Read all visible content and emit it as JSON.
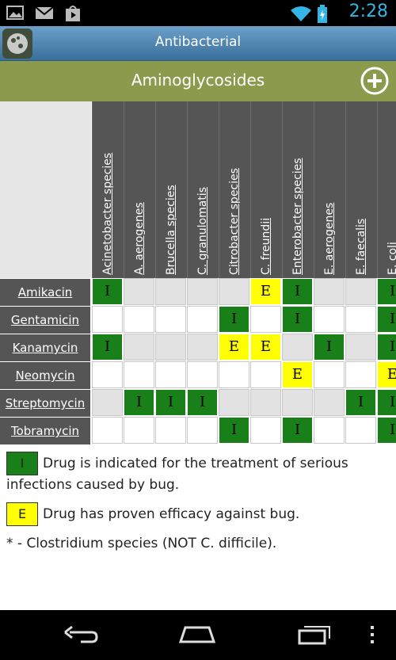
{
  "status": {
    "time": "2:28",
    "icons": [
      "image-icon",
      "gmail-icon",
      "play-store-icon",
      "wifi-icon",
      "battery-charging-icon"
    ]
  },
  "app": {
    "title": "Antibacterial"
  },
  "header": {
    "title": "Aminoglycosides"
  },
  "colors": {
    "indicated": "#198019",
    "efficacy": "#ffff00",
    "header_bg": "#555555",
    "subbar": "#8c9a4e"
  },
  "columns": [
    "Acinetobacter species",
    "A. aerogenes",
    "Brucella species",
    "C. granulomatis",
    "Citrobacter species",
    "C. freundii",
    "Enterobacter species",
    "E. aerogenes",
    "E. faecalis",
    "E. coli"
  ],
  "rows": [
    {
      "drug": "Amikacin",
      "cells": [
        "I",
        "",
        "",
        "",
        "",
        "E",
        "I",
        "",
        "",
        "I"
      ]
    },
    {
      "drug": "Gentamicin",
      "cells": [
        "",
        "",
        "",
        "",
        "I",
        "",
        "I",
        "",
        "",
        "I"
      ]
    },
    {
      "drug": "Kanamycin",
      "cells": [
        "I",
        "",
        "",
        "",
        "E",
        "E",
        "",
        "I",
        "",
        "I"
      ]
    },
    {
      "drug": "Neomycin",
      "cells": [
        "",
        "",
        "",
        "",
        "",
        "",
        "E",
        "",
        "",
        "E"
      ]
    },
    {
      "drug": "Streptomycin",
      "cells": [
        "",
        "I",
        "I",
        "I",
        "",
        "",
        "",
        "",
        "I",
        "I"
      ]
    },
    {
      "drug": "Tobramycin",
      "cells": [
        "",
        "",
        "",
        "",
        "I",
        "",
        "I",
        "",
        "",
        "I"
      ]
    }
  ],
  "legend": {
    "indicated_key": "I",
    "indicated_line1": "Drug is indicated for the treatment of serious",
    "indicated_line2": "infections caused by bug.",
    "efficacy_key": "E",
    "efficacy_text": "Drug has proven efficacy against bug.",
    "note": "* - Clostridium species (NOT C. difficile)."
  }
}
